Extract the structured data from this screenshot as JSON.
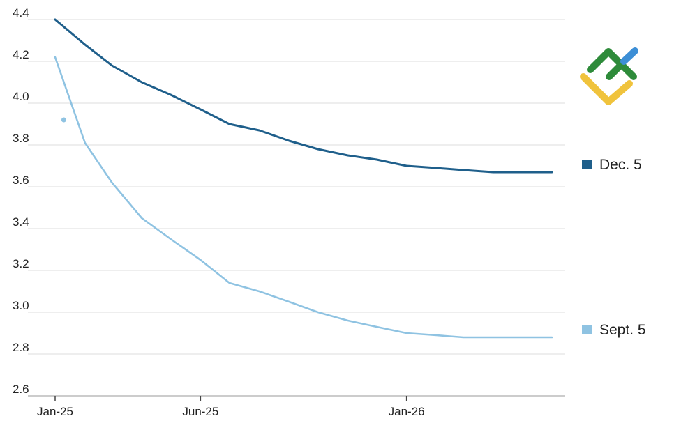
{
  "chart_data": {
    "type": "line",
    "title": "",
    "xlabel": "",
    "ylabel": "",
    "x_ticks": [
      "Jan-25",
      "Jun-25",
      "Jan-26"
    ],
    "y_ticks": [
      "4.4",
      "4.2",
      "4.0",
      "3.8",
      "3.6",
      "3.4",
      "3.2",
      "3.0",
      "2.8",
      "2.6"
    ],
    "ylim": [
      2.6,
      4.4
    ],
    "grid": true,
    "legend_placement": "right",
    "x": [
      "2025-01-01",
      "2025-02-01",
      "2025-03-01",
      "2025-04-01",
      "2025-05-01",
      "2025-06-01",
      "2025-07-01",
      "2025-08-01",
      "2025-09-01",
      "2025-10-01",
      "2025-11-01",
      "2025-12-01",
      "2026-01-01",
      "2026-02-01",
      "2026-03-01",
      "2026-04-01",
      "2026-05-01",
      "2026-06-01"
    ],
    "series": [
      {
        "name": "Dec. 5",
        "color": "#1f5f8b",
        "values": [
          4.4,
          4.28,
          4.18,
          4.1,
          4.04,
          3.97,
          3.9,
          3.87,
          3.82,
          3.78,
          3.75,
          3.73,
          3.7,
          3.69,
          3.68,
          3.67,
          3.67,
          3.67
        ]
      },
      {
        "name": "Sept. 5",
        "color": "#8fc3e2",
        "values": [
          4.22,
          3.81,
          3.62,
          3.45,
          3.35,
          3.25,
          3.14,
          3.1,
          3.05,
          3.0,
          2.96,
          2.93,
          2.9,
          2.89,
          2.88,
          2.88,
          2.88,
          2.88
        ]
      }
    ],
    "annotations": [
      {
        "series": "Sept. 5",
        "x": "2025-01-10",
        "y": 3.92,
        "kind": "point-marker"
      }
    ]
  },
  "logo": {
    "name": "brand-logo-icon",
    "colors": [
      "#2e8b3a",
      "#f0c33c",
      "#3d8fd6"
    ]
  }
}
